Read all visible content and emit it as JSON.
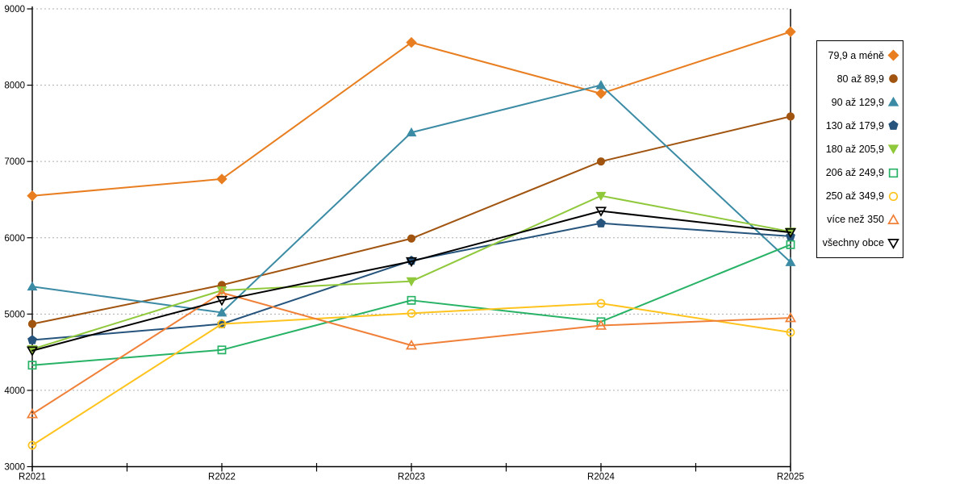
{
  "chart_data": {
    "type": "line",
    "title": "",
    "xlabel": "",
    "ylabel": "",
    "categories": [
      "R2021",
      "R2022",
      "R2023",
      "R2024",
      "R2025"
    ],
    "series": [
      {
        "name": "79,9 a méně",
        "color": "#E87E20",
        "marker": "diamond",
        "filled": true,
        "values": [
          6550,
          6770,
          8560,
          7890,
          8700
        ]
      },
      {
        "name": "80 až 89,9",
        "color": "#A0540F",
        "marker": "circle",
        "filled": true,
        "values": [
          4870,
          5380,
          5990,
          7000,
          7590
        ]
      },
      {
        "name": "90 až 129,9",
        "color": "#3B8BA5",
        "marker": "triangle-up",
        "filled": true,
        "values": [
          5360,
          5020,
          7380,
          8000,
          5680
        ]
      },
      {
        "name": "130 až 179,9",
        "color": "#26547C",
        "marker": "pentagon",
        "filled": true,
        "values": [
          4660,
          4870,
          5700,
          6190,
          6020
        ]
      },
      {
        "name": "180 až 205,9",
        "color": "#90C83C",
        "marker": "triangle-down",
        "filled": true,
        "values": [
          4540,
          5310,
          5430,
          6550,
          6080
        ]
      },
      {
        "name": "206 až 249,9",
        "color": "#27B266",
        "marker": "square",
        "filled": false,
        "values": [
          4330,
          4530,
          5180,
          4900,
          5910
        ]
      },
      {
        "name": "250 až 349,9",
        "color": "#FFC31E",
        "marker": "circle",
        "filled": false,
        "values": [
          3280,
          4870,
          5010,
          5140,
          4760
        ]
      },
      {
        "name": "více než 350",
        "color": "#F08038",
        "marker": "triangle-up",
        "filled": false,
        "values": [
          3690,
          5280,
          4590,
          4850,
          4950
        ]
      },
      {
        "name": "všechny obce",
        "color": "#000000",
        "marker": "triangle-down",
        "filled": false,
        "values": [
          4520,
          5180,
          5690,
          6350,
          6070
        ]
      }
    ],
    "ylim": [
      3000,
      9000
    ],
    "ytick_step": 1000,
    "y_tick_labels": [
      "3000",
      "4000",
      "5000",
      "6000",
      "7000",
      "8000",
      "9000"
    ],
    "grid": "horizontal-dashed",
    "grid_color": "#ADADAD",
    "axis_color": "#000000",
    "legend_position": "right",
    "minor_x_ticks_at_midpoints": true
  }
}
